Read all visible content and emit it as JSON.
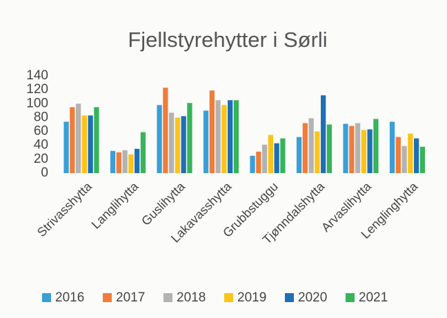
{
  "chart_data": {
    "type": "bar",
    "title": "Fjellstyrehytter i Sørli",
    "categories": [
      "Strivasshytta",
      "Langlihytta",
      "Guslihytta",
      "Lakavasshytta",
      "Grubbstuggu",
      "Tjønndalshytta",
      "Arvaslihytta",
      "Lenglinghytta"
    ],
    "series": [
      {
        "name": "2016",
        "color": "#3a9fd6",
        "values": [
          74,
          32,
          98,
          90,
          25,
          52,
          71,
          74
        ]
      },
      {
        "name": "2017",
        "color": "#f07c3a",
        "values": [
          95,
          30,
          123,
          119,
          31,
          72,
          68,
          52
        ]
      },
      {
        "name": "2018",
        "color": "#b3b3b3",
        "values": [
          100,
          33,
          87,
          105,
          41,
          79,
          72,
          39
        ]
      },
      {
        "name": "2019",
        "color": "#fcc419",
        "values": [
          83,
          27,
          80,
          98,
          55,
          60,
          62,
          57
        ]
      },
      {
        "name": "2020",
        "color": "#1f6fb4",
        "values": [
          83,
          35,
          82,
          105,
          43,
          112,
          63,
          50
        ]
      },
      {
        "name": "2021",
        "color": "#37b35a",
        "values": [
          95,
          59,
          101,
          105,
          50,
          70,
          78,
          38
        ]
      }
    ],
    "ylim": [
      0,
      140
    ],
    "yticks": [
      0,
      20,
      40,
      60,
      80,
      100,
      120,
      140
    ],
    "grid": false,
    "legend": "bottom"
  }
}
